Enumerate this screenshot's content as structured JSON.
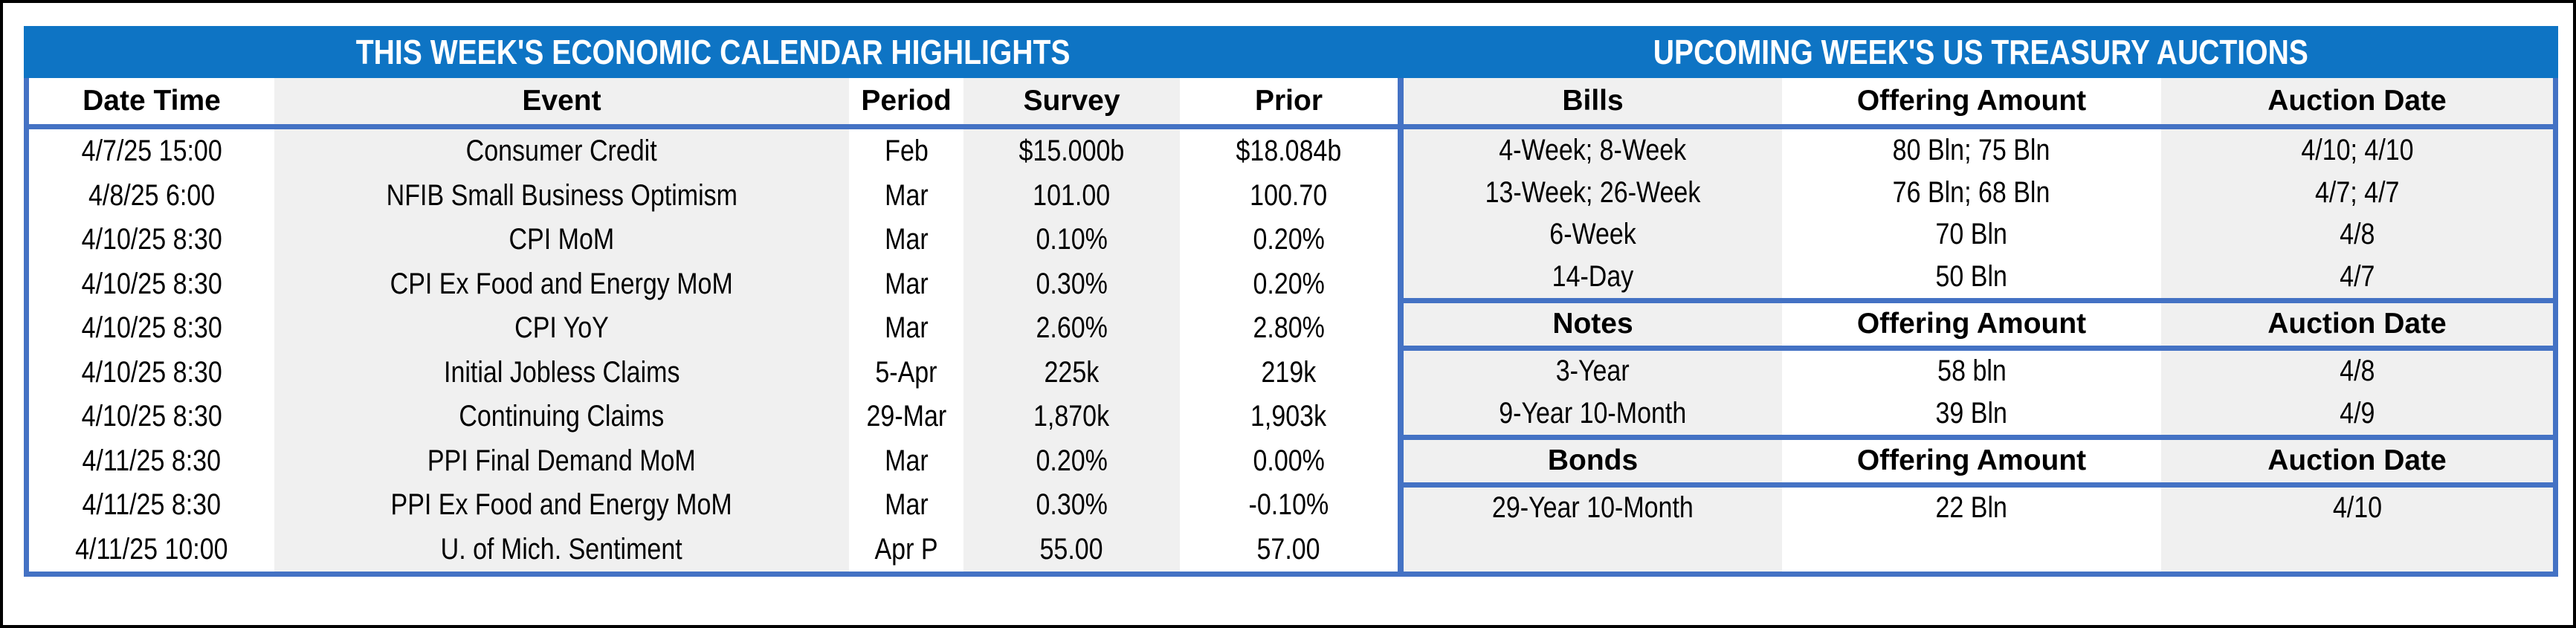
{
  "colors": {
    "band_blue": "#0E74C4",
    "line_blue": "#4472C4",
    "stripe_gray": "#F0F0F0",
    "frame_black": "#000000",
    "title_text": "#FFFFFF",
    "body_text": "#000000"
  },
  "left_table": {
    "title": "THIS WEEK'S ECONOMIC CALENDAR HIGHLIGHTS",
    "columns": [
      "Date Time",
      "Event",
      "Period",
      "Survey",
      "Prior"
    ],
    "rows": [
      [
        "4/7/25 15:00",
        "Consumer Credit",
        "Feb",
        "$15.000b",
        "$18.084b"
      ],
      [
        "4/8/25 6:00",
        "NFIB Small Business Optimism",
        "Mar",
        "101.00",
        "100.70"
      ],
      [
        "4/10/25 8:30",
        "CPI MoM",
        "Mar",
        "0.10%",
        "0.20%"
      ],
      [
        "4/10/25 8:30",
        "CPI Ex Food and Energy MoM",
        "Mar",
        "0.30%",
        "0.20%"
      ],
      [
        "4/10/25 8:30",
        "CPI YoY",
        "Mar",
        "2.60%",
        "2.80%"
      ],
      [
        "4/10/25 8:30",
        "Initial Jobless Claims",
        "5-Apr",
        "225k",
        "219k"
      ],
      [
        "4/10/25 8:30",
        "Continuing Claims",
        "29-Mar",
        "1,870k",
        "1,903k"
      ],
      [
        "4/11/25 8:30",
        "PPI Final Demand MoM",
        "Mar",
        "0.20%",
        "0.00%"
      ],
      [
        "4/11/25 8:30",
        "PPI Ex Food and Energy MoM",
        "Mar",
        "0.30%",
        "-0.10%"
      ],
      [
        "4/11/25 10:00",
        "U. of Mich. Sentiment",
        "Apr P",
        "55.00",
        "57.00"
      ]
    ]
  },
  "right_table": {
    "title": "UPCOMING WEEK'S US TREASURY AUCTIONS",
    "sections": [
      {
        "header": [
          "Bills",
          "Offering Amount",
          "Auction Date"
        ],
        "rows": [
          [
            "4-Week; 8-Week",
            "80 Bln; 75 Bln",
            "4/10; 4/10"
          ],
          [
            "13-Week; 26-Week",
            "76 Bln; 68 Bln",
            "4/7; 4/7"
          ],
          [
            "6-Week",
            "70 Bln",
            "4/8"
          ],
          [
            "14-Day",
            "50 Bln",
            "4/7"
          ]
        ]
      },
      {
        "header": [
          "Notes",
          "Offering Amount",
          "Auction Date"
        ],
        "rows": [
          [
            "3-Year",
            "58 bln",
            "4/8"
          ],
          [
            "9-Year 10-Month",
            "39 Bln",
            "4/9"
          ]
        ]
      },
      {
        "header": [
          "Bonds",
          "Offering Amount",
          "Auction Date"
        ],
        "rows": [
          [
            "29-Year 10-Month",
            "22 Bln",
            "4/10"
          ]
        ]
      }
    ]
  }
}
